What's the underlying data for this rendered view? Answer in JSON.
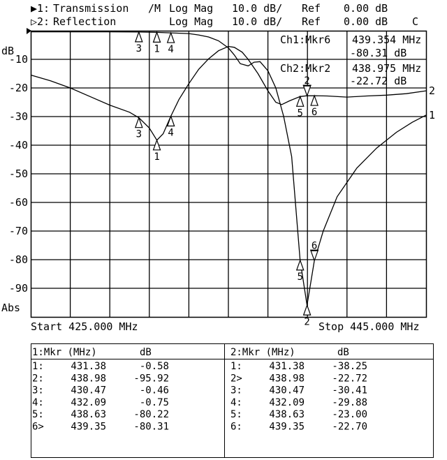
{
  "header": {
    "ch1": {
      "indicator": "▶1:",
      "name": "Transmission",
      "flag": "/M",
      "format": "Log Mag",
      "scale": "10.0 dB/",
      "ref_label": "Ref",
      "ref_value": "0.00 dB",
      "extra": ""
    },
    "ch2": {
      "indicator": "▷2:",
      "name": "Reflection",
      "flag": "",
      "format": "Log Mag",
      "scale": "10.0 dB/",
      "ref_label": "Ref",
      "ref_value": "0.00 dB",
      "extra": "C"
    }
  },
  "axis": {
    "unit_label": "dB",
    "bottom_label": "Abs",
    "start": "Start 425.000 MHz",
    "stop": "Stop 445.000 MHz"
  },
  "active_markers": [
    {
      "label": "Ch1:Mkr6",
      "freq": "439.354 MHz",
      "value": "-80.31 dB"
    },
    {
      "label": "Ch2:Mkr2",
      "freq": "438.975 MHz",
      "value": "-22.72 dB"
    }
  ],
  "chart_data": {
    "type": "line",
    "xlim": [
      425,
      445
    ],
    "ylim": [
      -100,
      0
    ],
    "x_unit": "MHz",
    "y_unit": "dB",
    "grid": true,
    "ytick_labels": [
      "-10",
      "-20",
      "-30",
      "-40",
      "-50",
      "-60",
      "-70",
      "-80",
      "-90"
    ],
    "yticks": [
      -10,
      -20,
      -30,
      -40,
      -50,
      -60,
      -70,
      -80,
      -90
    ],
    "series": [
      {
        "name": "1",
        "points": [
          [
            425,
            -0.4
          ],
          [
            427,
            -0.4
          ],
          [
            429,
            -0.4
          ],
          [
            430.47,
            -0.46
          ],
          [
            431.38,
            -0.58
          ],
          [
            432.09,
            -0.75
          ],
          [
            433,
            -1
          ],
          [
            433.5,
            -1.5
          ],
          [
            434,
            -2.2
          ],
          [
            434.5,
            -3.5
          ],
          [
            435,
            -6
          ],
          [
            435.3,
            -8.5
          ],
          [
            435.6,
            -11.5
          ],
          [
            436,
            -12.3
          ],
          [
            436.3,
            -11
          ],
          [
            436.6,
            -10.8
          ],
          [
            437,
            -14
          ],
          [
            437.4,
            -20
          ],
          [
            437.8,
            -30
          ],
          [
            438.2,
            -44
          ],
          [
            438.63,
            -80.22
          ],
          [
            438.98,
            -95.92
          ],
          [
            439.35,
            -80.31
          ],
          [
            439.8,
            -70
          ],
          [
            440.5,
            -58
          ],
          [
            441.5,
            -48
          ],
          [
            442.5,
            -41
          ],
          [
            443.5,
            -35.5
          ],
          [
            444.3,
            -32
          ],
          [
            445,
            -29.5
          ]
        ]
      },
      {
        "name": "2",
        "points": [
          [
            425,
            -15.5
          ],
          [
            426,
            -17.5
          ],
          [
            427,
            -20
          ],
          [
            428,
            -23
          ],
          [
            429,
            -26
          ],
          [
            430,
            -28.5
          ],
          [
            430.47,
            -30.41
          ],
          [
            431,
            -34
          ],
          [
            431.38,
            -38.25
          ],
          [
            431.7,
            -36
          ],
          [
            432.09,
            -29.88
          ],
          [
            432.5,
            -24
          ],
          [
            433,
            -18.5
          ],
          [
            433.5,
            -13.5
          ],
          [
            434,
            -9.8
          ],
          [
            434.5,
            -7
          ],
          [
            435,
            -5.5
          ],
          [
            435.3,
            -5.8
          ],
          [
            435.7,
            -7.5
          ],
          [
            436,
            -10
          ],
          [
            436.5,
            -15
          ],
          [
            437,
            -21
          ],
          [
            437.4,
            -25
          ],
          [
            437.7,
            -25.8
          ],
          [
            438.1,
            -24.5
          ],
          [
            438.63,
            -23.0
          ],
          [
            438.98,
            -22.72
          ],
          [
            439.35,
            -22.7
          ],
          [
            440,
            -22.8
          ],
          [
            441,
            -23.2
          ],
          [
            442,
            -22.8
          ],
          [
            443,
            -22.5
          ],
          [
            444,
            -22
          ],
          [
            445,
            -21
          ]
        ]
      }
    ],
    "end_labels": [
      "1",
      "2"
    ]
  },
  "marker_tables": [
    {
      "header_mkr": "1:Mkr (MHz)",
      "header_db": "dB",
      "rows": [
        {
          "id": "1:",
          "freq": "431.38",
          "db": "-0.58"
        },
        {
          "id": "2:",
          "freq": "438.98",
          "db": "-95.92"
        },
        {
          "id": "3:",
          "freq": "430.47",
          "db": "-0.46"
        },
        {
          "id": "4:",
          "freq": "432.09",
          "db": "-0.75"
        },
        {
          "id": "5:",
          "freq": "438.63",
          "db": "-80.22"
        },
        {
          "id": "6>",
          "freq": "439.35",
          "db": "-80.31"
        }
      ]
    },
    {
      "header_mkr": "2:Mkr (MHz)",
      "header_db": "dB",
      "rows": [
        {
          "id": "1:",
          "freq": "431.38",
          "db": "-38.25"
        },
        {
          "id": "2>",
          "freq": "438.98",
          "db": "-22.72"
        },
        {
          "id": "3:",
          "freq": "430.47",
          "db": "-30.41"
        },
        {
          "id": "4:",
          "freq": "432.09",
          "db": "-29.88"
        },
        {
          "id": "5:",
          "freq": "438.63",
          "db": "-23.00"
        },
        {
          "id": "6:",
          "freq": "439.35",
          "db": "-22.70"
        }
      ]
    }
  ]
}
